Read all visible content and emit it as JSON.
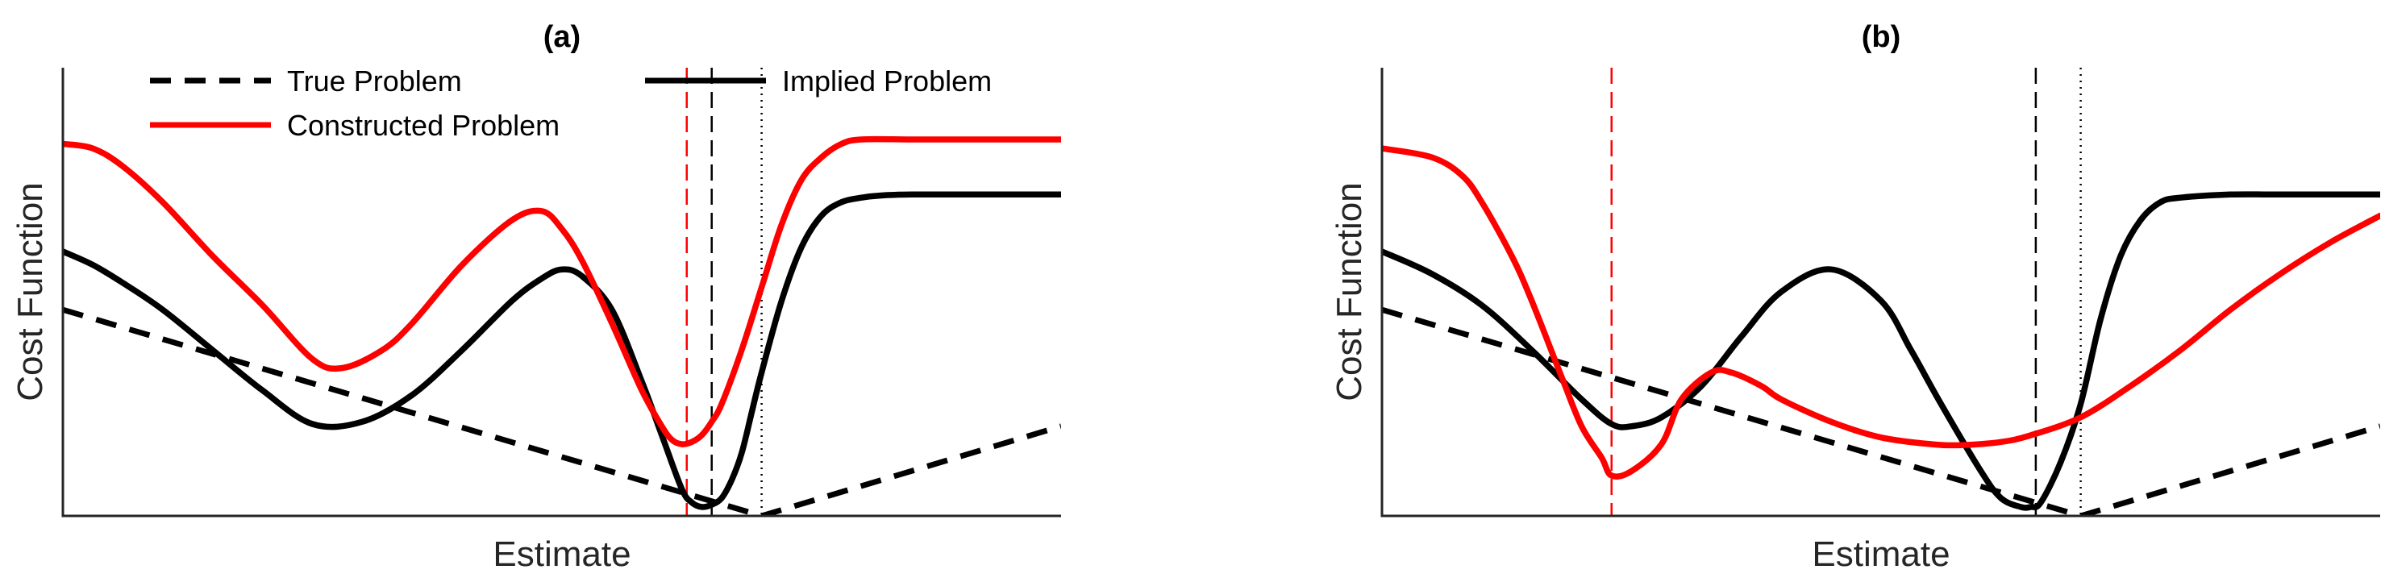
{
  "chart_data": [
    {
      "panel": "a",
      "type": "line",
      "title": "(a)",
      "xlabel": "Estimate",
      "ylabel": "Cost Function",
      "xlim": [
        0,
        100
      ],
      "ylim": [
        0,
        100
      ],
      "grid": false,
      "axis_ticks": "none",
      "legend": {
        "placement": "top",
        "entries": [
          {
            "series": "true_problem",
            "label": "True Problem"
          },
          {
            "series": "implied_problem",
            "label": "Implied Problem"
          },
          {
            "series": "constructed_problem",
            "label": "Constructed Problem"
          }
        ]
      },
      "series": [
        {
          "id": "true_problem",
          "name": "True Problem",
          "color": "#000000",
          "style": "dashed",
          "x": [
            0,
            70,
            100
          ],
          "y": [
            46,
            0,
            20
          ]
        },
        {
          "id": "implied_problem",
          "name": "Implied Problem",
          "color": "#000000",
          "style": "solid",
          "x": [
            0,
            3,
            6,
            10,
            15,
            20,
            25,
            30,
            35,
            40,
            45,
            48,
            50,
            52,
            55,
            58,
            60,
            62,
            63,
            64,
            65,
            66,
            67,
            68,
            69,
            70,
            72,
            74,
            76,
            78,
            80,
            82,
            85,
            90,
            95,
            100
          ],
          "y": [
            59,
            56,
            52,
            46,
            37,
            28,
            20.5,
            21,
            27,
            37,
            48,
            53,
            55,
            53.5,
            46,
            30,
            18,
            6,
            3,
            2,
            2.5,
            4,
            8,
            14,
            23,
            32,
            48,
            60,
            67,
            70,
            71,
            71.5,
            71.7,
            71.7,
            71.7,
            71.7
          ]
        },
        {
          "id": "constructed_problem",
          "name": "Constructed Problem",
          "color": "#ff0000",
          "style": "solid",
          "x": [
            0,
            3,
            6,
            10,
            15,
            20,
            25,
            28,
            32,
            35,
            40,
            45,
            48,
            50,
            52,
            55,
            58,
            60,
            61,
            62,
            63,
            64,
            65,
            66,
            68,
            70,
            72,
            74,
            76,
            78,
            80,
            85,
            90,
            100
          ],
          "y": [
            83,
            82,
            78,
            70,
            58,
            47,
            35,
            33,
            37,
            43,
            56,
            66,
            68,
            64,
            57,
            43,
            28,
            20,
            17,
            16,
            16.5,
            18,
            21,
            25,
            37,
            51,
            65,
            75,
            80,
            83,
            84,
            84,
            84,
            84
          ]
        },
        {
          "id": "red_dashed_marker",
          "name": "",
          "color": "#ff0000",
          "style": "vline-dashed",
          "x": [
            62.5
          ]
        },
        {
          "id": "black_dashed_marker",
          "name": "",
          "color": "#000000",
          "style": "vline-dashed",
          "x": [
            65
          ]
        },
        {
          "id": "black_dotted_marker",
          "name": "",
          "color": "#000000",
          "style": "vline-dotted",
          "x": [
            70
          ]
        }
      ]
    },
    {
      "panel": "b",
      "type": "line",
      "title": "(b)",
      "xlabel": "Estimate",
      "ylabel": "Cost Function",
      "xlim": [
        0,
        100
      ],
      "ylim": [
        0,
        100
      ],
      "grid": false,
      "axis_ticks": "none",
      "series": [
        {
          "id": "true_problem",
          "name": "True Problem",
          "color": "#000000",
          "style": "dashed",
          "x": [
            0,
            70,
            100
          ],
          "y": [
            46,
            0,
            20
          ]
        },
        {
          "id": "implied_problem",
          "name": "Implied Problem",
          "color": "#000000",
          "style": "solid",
          "x": [
            0,
            5,
            10,
            15,
            20,
            23,
            25,
            28,
            32,
            36,
            40,
            45,
            50,
            53,
            56,
            60,
            62,
            64,
            65,
            66,
            68,
            70,
            72,
            74,
            76,
            78,
            80,
            85,
            90,
            100
          ],
          "y": [
            59,
            54,
            47,
            37,
            26,
            20.5,
            20,
            22,
            29,
            40,
            50,
            55,
            48,
            37,
            25,
            10,
            4,
            2,
            2,
            3,
            12,
            25,
            44,
            58,
            66,
            70,
            71,
            71.7,
            71.7,
            71.7
          ]
        },
        {
          "id": "constructed_problem",
          "name": "Constructed Problem",
          "color": "#ff0000",
          "style": "solid",
          "x": [
            0,
            5,
            8,
            10,
            13,
            15,
            18,
            20,
            22,
            23,
            25,
            28,
            30,
            33,
            35,
            38,
            40,
            45,
            50,
            55,
            58,
            62,
            65,
            70,
            75,
            80,
            85,
            90,
            95,
            100
          ],
          "y": [
            82,
            80,
            76,
            70,
            58,
            48,
            31,
            20,
            13,
            9,
            10,
            16,
            26,
            32,
            32,
            29,
            26,
            21,
            17.5,
            16,
            15.8,
            16.5,
            18,
            22,
            29,
            37,
            46,
            54,
            61,
            67
          ]
        },
        {
          "id": "red_dashed_marker",
          "name": "",
          "color": "#ff0000",
          "style": "vline-dashed",
          "x": [
            23
          ]
        },
        {
          "id": "black_dashed_marker",
          "name": "",
          "color": "#000000",
          "style": "vline-dashed",
          "x": [
            65.5
          ]
        },
        {
          "id": "black_dotted_marker",
          "name": "",
          "color": "#000000",
          "style": "vline-dotted",
          "x": [
            70
          ]
        }
      ]
    }
  ]
}
